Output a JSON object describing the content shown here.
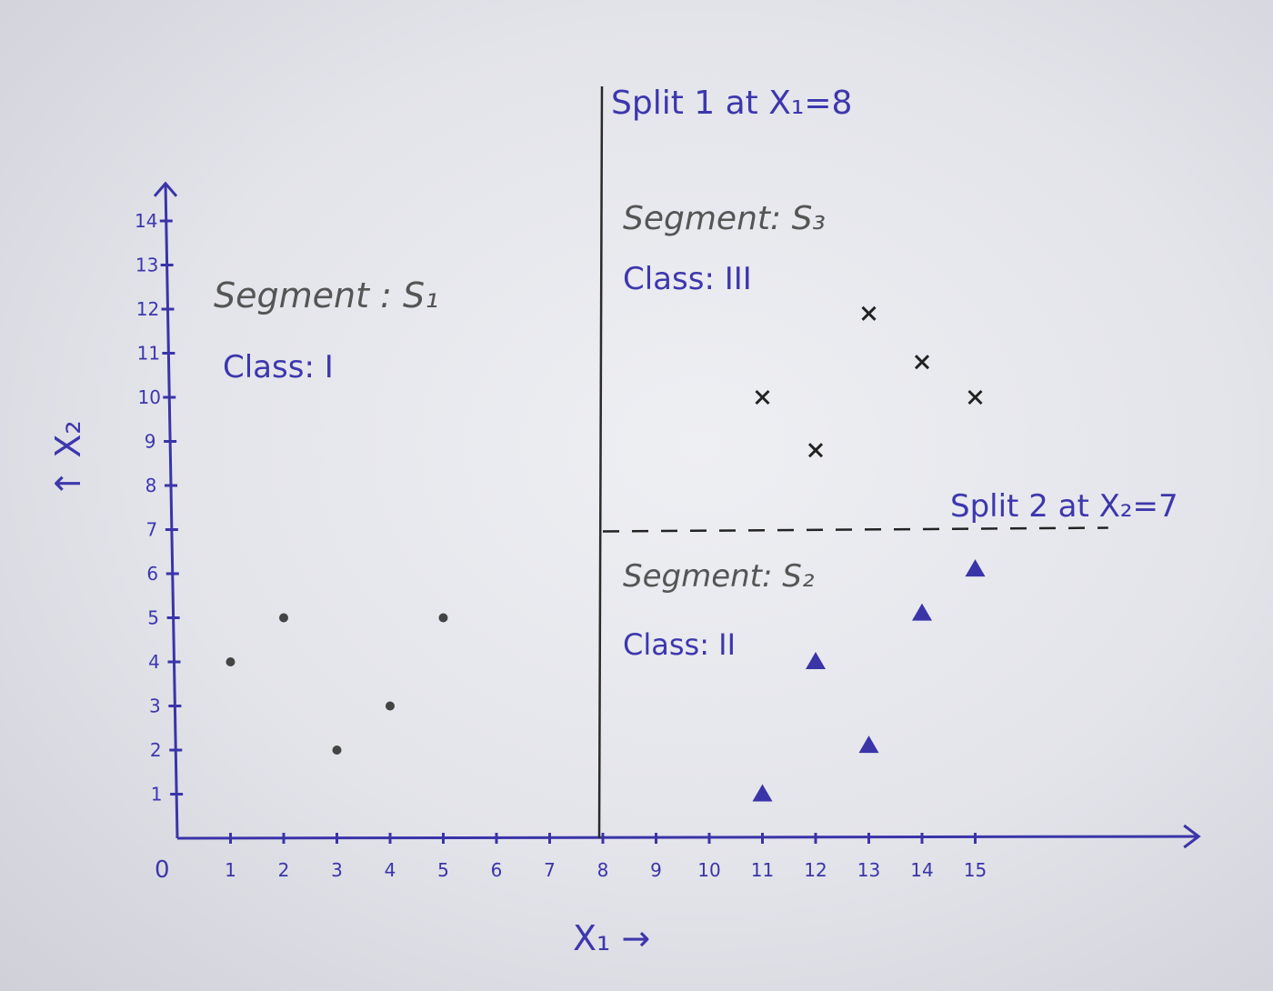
{
  "chart_data": {
    "type": "scatter",
    "xlabel": "X₁ →",
    "ylabel": "↑ X₂",
    "origin_label": "0",
    "x_ticks": [
      "1",
      "2",
      "3",
      "4",
      "5",
      "6",
      "7",
      "8",
      "9",
      "10",
      "11",
      "12",
      "13",
      "14",
      "15"
    ],
    "y_ticks": [
      "1",
      "2",
      "3",
      "4",
      "5",
      "6",
      "7",
      "8",
      "9",
      "10",
      "11",
      "12",
      "13",
      "14"
    ],
    "xlim": [
      0,
      20
    ],
    "ylim": [
      0,
      14.5
    ],
    "grid": false,
    "splits": [
      {
        "label": "Split 1 at X₁=8",
        "axis": "x1",
        "value": 8,
        "style": "solid"
      },
      {
        "label": "Split 2 at X₂=7",
        "axis": "x2",
        "value": 7,
        "style": "dashed",
        "from": 8,
        "to": 17.5
      }
    ],
    "segments": [
      {
        "segment_text": "Segment : S₁",
        "class_text": "Class: I"
      },
      {
        "segment_text": "Segment: S₂",
        "class_text": "Class: II"
      },
      {
        "segment_text": "Segment: S₃",
        "class_text": "Class: III"
      }
    ],
    "series": [
      {
        "marker": "dot",
        "color": "#444444",
        "points": [
          [
            1,
            4
          ],
          [
            2,
            5
          ],
          [
            3,
            2
          ],
          [
            4,
            3
          ],
          [
            5,
            5
          ]
        ]
      },
      {
        "marker": "triangle",
        "color": "#3a34a8",
        "points": [
          [
            11,
            1
          ],
          [
            12,
            4
          ],
          [
            13,
            2.1
          ],
          [
            14,
            5.1
          ],
          [
            15,
            6.1
          ]
        ]
      },
      {
        "marker": "cross",
        "color": "#222222",
        "points": [
          [
            11,
            10
          ],
          [
            12,
            8.8
          ],
          [
            13,
            11.9
          ],
          [
            14,
            10.8
          ],
          [
            15,
            10
          ]
        ]
      }
    ]
  },
  "colors": {
    "ink": "#3a34a8",
    "pencil": "#444444"
  }
}
